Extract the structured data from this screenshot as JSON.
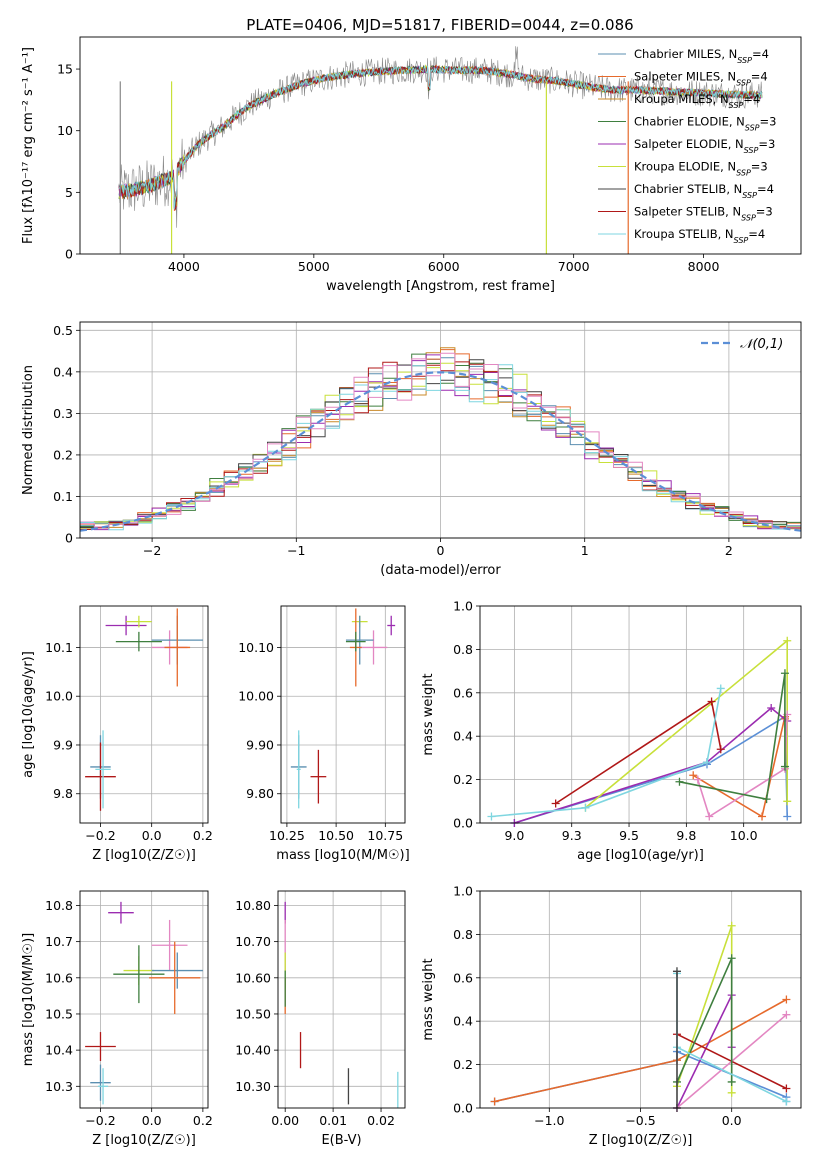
{
  "figure": {
    "title": "PLATE=0406, MJD=51817, FIBERID=0044, z=0.086"
  },
  "colors": {
    "Chabrier MILES": "#5b8fb0",
    "Salpeter MILES": "#e66a2c",
    "Kroupa MILES": "#c98a2a",
    "Chabrier ELODIE": "#3f7f3f",
    "Salpeter ELODIE": "#9b2cb0",
    "Kroupa ELODIE": "#c8e03a",
    "Chabrier STELIB": "#444444",
    "Salpeter STELIB": "#b01818",
    "Kroupa STELIB": "#7fd6e0",
    "Normal": "#5b8fd6",
    "Pink": "#e387c2",
    "Grey": "#888888"
  },
  "chart_data": [
    {
      "id": "spectrum",
      "type": "line",
      "title": "PLATE=0406, MJD=51817, FIBERID=0044, z=0.086",
      "xlabel": "wavelength [Angstrom, rest frame]",
      "ylabel": "Flux [fλ10⁻¹⁷ erg cm⁻² s⁻¹ A⁻¹]",
      "xlim": [
        3200,
        8750
      ],
      "ylim": [
        0,
        17.6
      ],
      "xticks": [
        4000,
        5000,
        6000,
        7000,
        8000
      ],
      "yticks": [
        0,
        5,
        10,
        15
      ],
      "legend_position": "top-right",
      "series": [
        {
          "name": "Chabrier MILES, N_SSP=4",
          "legend": "Chabrier MILES, N",
          "legend_sub": "SSP",
          "legend_end": "=4",
          "color": "#5b8fb0"
        },
        {
          "name": "Salpeter MILES, N_SSP=4",
          "legend": "Salpeter MILES, N",
          "legend_sub": "SSP",
          "legend_end": "=4",
          "color": "#e66a2c"
        },
        {
          "name": "Kroupa MILES, N_SSP=4",
          "legend": "Kroupa MILES, N",
          "legend_sub": "SSP",
          "legend_end": "=4",
          "color": "#c98a2a"
        },
        {
          "name": "Chabrier ELODIE, N_SSP=3",
          "legend": "Chabrier ELODIE, N",
          "legend_sub": "SSP",
          "legend_end": "=3",
          "color": "#3f7f3f"
        },
        {
          "name": "Salpeter ELODIE, N_SSP=3",
          "legend": "Salpeter ELODIE, N",
          "legend_sub": "SSP",
          "legend_end": "=3",
          "color": "#9b2cb0"
        },
        {
          "name": "Kroupa ELODIE, N_SSP=3",
          "legend": "Kroupa ELODIE, N",
          "legend_sub": "SSP",
          "legend_end": "=3",
          "color": "#c8e03a"
        },
        {
          "name": "Chabrier STELIB, N_SSP=4",
          "legend": "Chabrier STELIB, N",
          "legend_sub": "SSP",
          "legend_end": "=4",
          "color": "#444444"
        },
        {
          "name": "Salpeter STELIB, N_SSP=3",
          "legend": "Salpeter STELIB, N",
          "legend_sub": "SSP",
          "legend_end": "=3",
          "color": "#b01818"
        },
        {
          "name": "Kroupa STELIB, N_SSP=4",
          "legend": "Kroupa STELIB, N",
          "legend_sub": "SSP",
          "legend_end": "=4",
          "color": "#7fd6e0"
        }
      ],
      "continuum": {
        "x": [
          3500,
          3600,
          3700,
          3800,
          3900,
          4000,
          4100,
          4200,
          4300,
          4400,
          4500,
          4700,
          4900,
          5100,
          5300,
          5500,
          5700,
          5900,
          6100,
          6300,
          6500,
          6700,
          6900,
          7100,
          7300,
          7500,
          7700,
          7900,
          8100,
          8300,
          8500
        ],
        "y": [
          5.0,
          5.2,
          5.4,
          5.8,
          6.2,
          7.5,
          8.8,
          9.6,
          10.3,
          11.2,
          12.0,
          13.0,
          13.8,
          14.3,
          14.6,
          14.8,
          14.9,
          15.0,
          14.9,
          14.9,
          14.6,
          14.2,
          14.0,
          13.6,
          13.3,
          13.3,
          13.2,
          13.1,
          13.0,
          12.9,
          12.9
        ]
      }
    },
    {
      "id": "residuals",
      "type": "line",
      "xlabel": "(data-model)/error",
      "ylabel": "Normed distribution",
      "xlim": [
        -2.5,
        2.5
      ],
      "ylim": [
        0,
        0.52
      ],
      "xticks": [
        -2,
        -1,
        0,
        1,
        2
      ],
      "yticks": [
        0.0,
        0.1,
        0.2,
        0.3,
        0.4,
        0.5
      ],
      "legend_position": "top-right",
      "normal_label": "𝒩(0,1)",
      "bin_width": 0.1
    },
    {
      "id": "age-vs-Z",
      "type": "scatter",
      "xlabel": "Z [log10(Z/Z☉)]",
      "ylabel": "age [log10(age/yr)]",
      "xlim": [
        -0.28,
        0.22
      ],
      "ylim": [
        9.74,
        10.185
      ],
      "xticks": [
        -0.2,
        0.0,
        0.2
      ],
      "yticks": [
        9.8,
        9.9,
        10.0,
        10.1
      ],
      "points": [
        {
          "x": -0.1,
          "y": 10.145,
          "xerr": 0.08,
          "yerr": 0.02,
          "color": "#9b2cb0"
        },
        {
          "x": -0.05,
          "y": 10.153,
          "xerr": 0.05,
          "yerr": 0.012,
          "color": "#c8e03a"
        },
        {
          "x": 0.07,
          "y": 10.1,
          "xerr": 0.07,
          "yerr": 0.035,
          "color": "#e387c2"
        },
        {
          "x": 0.1,
          "y": 10.115,
          "xerr": 0.1,
          "yerr": 0.05,
          "color": "#5b8fb0"
        },
        {
          "x": 0.1,
          "y": 10.1,
          "xerr": 0.05,
          "yerr": 0.08,
          "color": "#e66a2c"
        },
        {
          "x": -0.05,
          "y": 10.112,
          "xerr": 0.09,
          "yerr": 0.02,
          "color": "#3f7f3f"
        },
        {
          "x": -0.2,
          "y": 9.855,
          "xerr": 0.04,
          "yerr": 0.065,
          "color": "#5b8fb0"
        },
        {
          "x": -0.2,
          "y": 9.835,
          "xerr": 0.06,
          "yerr": 0.07,
          "color": "#b01818"
        },
        {
          "x": -0.19,
          "y": 9.85,
          "xerr": 0.03,
          "yerr": 0.08,
          "color": "#7fd6e0"
        }
      ]
    },
    {
      "id": "age-vs-mass",
      "type": "scatter",
      "xlabel": "mass [log10(M/M☉)]",
      "ylabel": "",
      "xlim": [
        10.22,
        10.85
      ],
      "ylim": [
        9.74,
        10.185
      ],
      "xticks": [
        10.25,
        10.5,
        10.75
      ],
      "yticks": [
        9.8,
        9.9,
        10.0,
        10.1
      ],
      "points": [
        {
          "x": 10.78,
          "y": 10.145,
          "xerr": 0.02,
          "yerr": 0.02,
          "color": "#9b2cb0"
        },
        {
          "x": 10.62,
          "y": 10.153,
          "xerr": 0.04,
          "yerr": 0.012,
          "color": "#c8e03a"
        },
        {
          "x": 10.69,
          "y": 10.1,
          "xerr": 0.07,
          "yerr": 0.035,
          "color": "#e387c2"
        },
        {
          "x": 10.62,
          "y": 10.115,
          "xerr": 0.07,
          "yerr": 0.05,
          "color": "#5b8fb0"
        },
        {
          "x": 10.6,
          "y": 10.1,
          "xerr": 0.03,
          "yerr": 0.08,
          "color": "#e66a2c"
        },
        {
          "x": 10.6,
          "y": 10.112,
          "xerr": 0.05,
          "yerr": 0.02,
          "color": "#3f7f3f"
        },
        {
          "x": 10.31,
          "y": 9.855,
          "xerr": 0.04,
          "yerr": 0.065,
          "color": "#5b8fb0"
        },
        {
          "x": 10.41,
          "y": 9.835,
          "xerr": 0.04,
          "yerr": 0.055,
          "color": "#b01818"
        },
        {
          "x": 10.31,
          "y": 9.85,
          "xerr": 0.01,
          "yerr": 0.08,
          "color": "#7fd6e0"
        }
      ]
    },
    {
      "id": "mass-weight-vs-age",
      "type": "line",
      "xlabel": "age [log10(age/yr)]",
      "ylabel": "mass weight",
      "xlim": [
        8.85,
        10.25
      ],
      "ylim": [
        0,
        1.0
      ],
      "xticks": [
        9.0,
        9.25,
        9.5,
        9.75,
        10.0
      ],
      "yticks": [
        0.0,
        0.2,
        0.4,
        0.6,
        0.8,
        1.0
      ],
      "series": [
        {
          "color": "#5b8fd6",
          "x": [
            9.0,
            9.84,
            10.18,
            10.19
          ],
          "y": [
            0.0,
            0.27,
            0.49,
            0.03
          ]
        },
        {
          "color": "#e66a2c",
          "x": [
            9.78,
            10.08,
            10.18,
            10.18
          ],
          "y": [
            0.22,
            0.03,
            0.49,
            0.48
          ]
        },
        {
          "color": "#9b2cb0",
          "x": [
            9.0,
            9.84,
            10.12,
            10.19
          ],
          "y": [
            0.0,
            0.28,
            0.53,
            0.47
          ]
        },
        {
          "color": "#c8e03a",
          "x": [
            9.31,
            10.19,
            10.19
          ],
          "y": [
            0.07,
            0.84,
            0.1
          ]
        },
        {
          "color": "#b01818",
          "x": [
            9.18,
            9.86,
            9.9
          ],
          "y": [
            0.09,
            0.56,
            0.34
          ]
        },
        {
          "color": "#e387c2",
          "x": [
            9.8,
            9.85,
            10.18,
            10.19
          ],
          "y": [
            0.2,
            0.03,
            0.25,
            0.5
          ]
        },
        {
          "color": "#3f7f3f",
          "x": [
            9.72,
            10.1,
            10.18,
            10.18
          ],
          "y": [
            0.19,
            0.11,
            0.69,
            0.26
          ]
        },
        {
          "color": "#7fd6e0",
          "x": [
            8.9,
            9.31,
            9.84,
            9.9
          ],
          "y": [
            0.03,
            0.07,
            0.28,
            0.62
          ]
        }
      ]
    },
    {
      "id": "mass-vs-Z",
      "type": "scatter",
      "xlabel": "Z [log10(Z/Z☉)]",
      "ylabel": "mass [log10(M/M☉)]",
      "xlim": [
        -0.28,
        0.22
      ],
      "ylim": [
        10.24,
        10.84
      ],
      "xticks": [
        -0.2,
        0.0,
        0.2
      ],
      "yticks": [
        10.3,
        10.4,
        10.5,
        10.6,
        10.7,
        10.8
      ],
      "points": [
        {
          "x": -0.12,
          "y": 10.78,
          "xerr": 0.05,
          "yerr": 0.03,
          "color": "#9b2cb0"
        },
        {
          "x": 0.07,
          "y": 10.69,
          "xerr": 0.07,
          "yerr": 0.07,
          "color": "#e387c2"
        },
        {
          "x": -0.05,
          "y": 10.62,
          "xerr": 0.06,
          "yerr": 0.04,
          "color": "#c8e03a"
        },
        {
          "x": 0.1,
          "y": 10.62,
          "xerr": 0.1,
          "yerr": 0.05,
          "color": "#5b8fb0"
        },
        {
          "x": 0.09,
          "y": 10.6,
          "xerr": 0.1,
          "yerr": 0.1,
          "color": "#e66a2c"
        },
        {
          "x": -0.05,
          "y": 10.61,
          "xerr": 0.1,
          "yerr": 0.08,
          "color": "#3f7f3f"
        },
        {
          "x": -0.2,
          "y": 10.41,
          "xerr": 0.06,
          "yerr": 0.04,
          "color": "#b01818"
        },
        {
          "x": -0.2,
          "y": 10.31,
          "xerr": 0.04,
          "yerr": 0.05,
          "color": "#5b8fb0"
        },
        {
          "x": -0.19,
          "y": 10.3,
          "xerr": 0.02,
          "yerr": 0.05,
          "color": "#7fd6e0"
        }
      ]
    },
    {
      "id": "mass-vs-EBV",
      "type": "scatter",
      "xlabel": "E(B-V)",
      "ylabel": "",
      "xlim": [
        -0.0015,
        0.025
      ],
      "ylim": [
        10.24,
        10.84
      ],
      "xticks": [
        0.0,
        0.01,
        0.02
      ],
      "yticks": [
        10.3,
        10.4,
        10.5,
        10.6,
        10.7,
        10.8
      ],
      "points": [
        {
          "x": 0.0,
          "y": 10.78,
          "xerr": 0,
          "yerr": 0.03,
          "color": "#9b2cb0"
        },
        {
          "x": 0.0,
          "y": 10.69,
          "xerr": 0,
          "yerr": 0.07,
          "color": "#e387c2"
        },
        {
          "x": 0.0,
          "y": 10.62,
          "xerr": 0,
          "yerr": 0.05,
          "color": "#c8e03a"
        },
        {
          "x": 0.0,
          "y": 10.55,
          "xerr": 0,
          "yerr": 0.05,
          "color": "#e66a2c"
        },
        {
          "x": 0.0,
          "y": 10.57,
          "xerr": 0,
          "yerr": 0.05,
          "color": "#3f7f3f"
        },
        {
          "x": 0.0032,
          "y": 10.4,
          "xerr": 0,
          "yerr": 0.05,
          "color": "#b01818"
        },
        {
          "x": 0.0132,
          "y": 10.3,
          "xerr": 0,
          "yerr": 0.05,
          "color": "#444444"
        },
        {
          "x": 0.0235,
          "y": 10.29,
          "xerr": 0,
          "yerr": 0.05,
          "color": "#7fd6e0"
        }
      ]
    },
    {
      "id": "mass-weight-vs-Z",
      "type": "line",
      "xlabel": "Z [log10(Z/Z☉)]",
      "ylabel": "mass weight",
      "xlim": [
        -1.38,
        0.38
      ],
      "ylim": [
        0,
        1.0
      ],
      "xticks": [
        -1.0,
        -0.5,
        0.0
      ],
      "yticks": [
        0.0,
        0.2,
        0.4,
        0.6,
        0.8,
        1.0
      ],
      "series": [
        {
          "color": "#5b8fd6",
          "x": [
            -1.3,
            -0.3,
            -0.3,
            0.3,
            0.3
          ],
          "y": [
            0.03,
            0.22,
            0.26,
            0.05,
            0.03
          ]
        },
        {
          "color": "#e66a2c",
          "x": [
            -1.3,
            -0.3,
            0.3
          ],
          "y": [
            0.03,
            0.22,
            0.5
          ]
        },
        {
          "color": "#9b2cb0",
          "x": [
            -0.3,
            0.0,
            0.0
          ],
          "y": [
            0.0,
            0.52,
            0.28
          ]
        },
        {
          "color": "#c8e03a",
          "x": [
            -0.3,
            0.0,
            0.0
          ],
          "y": [
            0.1,
            0.84,
            0.07
          ]
        },
        {
          "color": "#b01818",
          "x": [
            -0.3,
            0.3
          ],
          "y": [
            0.34,
            0.09
          ]
        },
        {
          "color": "#e387c2",
          "x": [
            -0.3,
            0.3
          ],
          "y": [
            0.0,
            0.43
          ]
        },
        {
          "color": "#3f7f3f",
          "x": [
            -0.3,
            0.0,
            0.0
          ],
          "y": [
            0.12,
            0.69,
            0.12
          ]
        },
        {
          "color": "#7fd6e0",
          "x": [
            -0.3,
            -0.3,
            0.3
          ],
          "y": [
            0.62,
            0.28,
            0.03
          ]
        },
        {
          "color": "#444444",
          "x": [
            -0.3,
            -0.3
          ],
          "y": [
            0.0,
            0.63
          ]
        }
      ]
    }
  ]
}
